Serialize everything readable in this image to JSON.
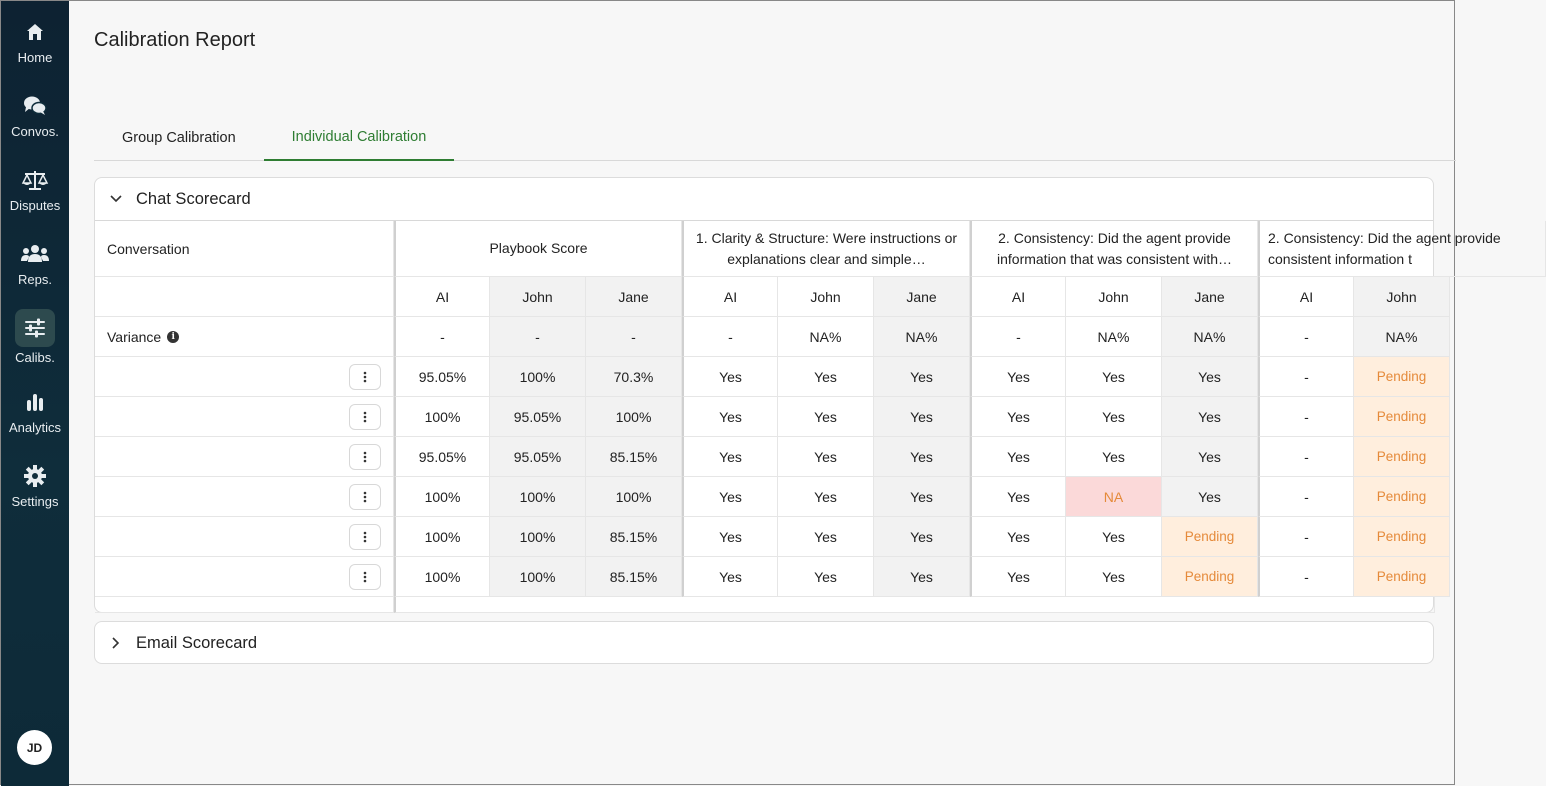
{
  "nav": {
    "items": [
      {
        "label": "Home",
        "icon": "home-icon"
      },
      {
        "label": "Convos.",
        "icon": "chat-bubbles-icon"
      },
      {
        "label": "Disputes",
        "icon": "scales-icon"
      },
      {
        "label": "Reps.",
        "icon": "people-icon"
      },
      {
        "label": "Calibs.",
        "icon": "sliders-icon",
        "active": true
      },
      {
        "label": "Analytics",
        "icon": "bar-chart-icon"
      },
      {
        "label": "Settings",
        "icon": "gear-icon"
      }
    ],
    "avatar_initials": "JD"
  },
  "page": {
    "title": "Calibration Report",
    "tabs": [
      {
        "label": "Group Calibration"
      },
      {
        "label": "Individual Calibration",
        "active": true
      }
    ]
  },
  "chat_card": {
    "title": "Chat Scorecard",
    "table": {
      "conversation_header": "Conversation",
      "groups": [
        "Playbook Score",
        "1. Clarity & Structure: Were instructions or explanations clear and simple…",
        "2. Consistency: Did the agent provide information that was consistent with…",
        "2. Consistency: Did the agent provide consistent information t"
      ],
      "subheaders": [
        "AI",
        "John",
        "Jane",
        "AI",
        "John",
        "Jane",
        "AI",
        "John",
        "Jane",
        "AI",
        "John"
      ],
      "variance_label": "Variance",
      "variance": [
        "-",
        "-",
        "-",
        "-",
        "NA%",
        "NA%",
        "-",
        "NA%",
        "NA%",
        "-",
        "NA%"
      ],
      "rows": [
        [
          "95.05%",
          "100%",
          "70.3%",
          "Yes",
          "Yes",
          "Yes",
          "Yes",
          "Yes",
          "Yes",
          "-",
          "Pending"
        ],
        [
          "100%",
          "95.05%",
          "100%",
          "Yes",
          "Yes",
          "Yes",
          "Yes",
          "Yes",
          "Yes",
          "-",
          "Pending"
        ],
        [
          "95.05%",
          "95.05%",
          "85.15%",
          "Yes",
          "Yes",
          "Yes",
          "Yes",
          "Yes",
          "Yes",
          "-",
          "Pending"
        ],
        [
          "100%",
          "100%",
          "100%",
          "Yes",
          "Yes",
          "Yes",
          "Yes",
          "NA",
          "Yes",
          "-",
          "Pending"
        ],
        [
          "100%",
          "100%",
          "85.15%",
          "Yes",
          "Yes",
          "Yes",
          "Yes",
          "Yes",
          "Pending",
          "-",
          "Pending"
        ],
        [
          "100%",
          "100%",
          "85.15%",
          "Yes",
          "Yes",
          "Yes",
          "Yes",
          "Yes",
          "Pending",
          "-",
          "Pending"
        ]
      ]
    }
  },
  "email_card": {
    "title": "Email Scorecard"
  },
  "colors": {
    "accent": "#2e7d32",
    "sidebar": "#0f2d3b",
    "pending_bg": "#ffeedd",
    "pending_text": "#e58a3a",
    "na_bg": "#fbd9d9"
  }
}
